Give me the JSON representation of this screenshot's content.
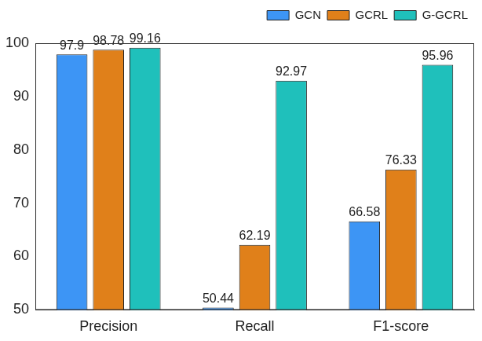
{
  "chart_data": {
    "type": "bar",
    "categories": [
      "Precision",
      "Recall",
      "F1-score"
    ],
    "series": [
      {
        "name": "GCN",
        "color": "#3d95f5",
        "values": [
          97.9,
          50.44,
          66.58
        ]
      },
      {
        "name": "GCRL",
        "color": "#e0801a",
        "values": [
          98.78,
          62.19,
          76.33
        ]
      },
      {
        "name": "G-GCRL",
        "color": "#1fc0bb",
        "values": [
          99.16,
          92.97,
          95.96
        ]
      }
    ],
    "ylim": [
      50,
      100
    ],
    "yticks": [
      50,
      60,
      70,
      80,
      90,
      100
    ],
    "grid": false,
    "legend": "top-right",
    "data_labels": true
  }
}
